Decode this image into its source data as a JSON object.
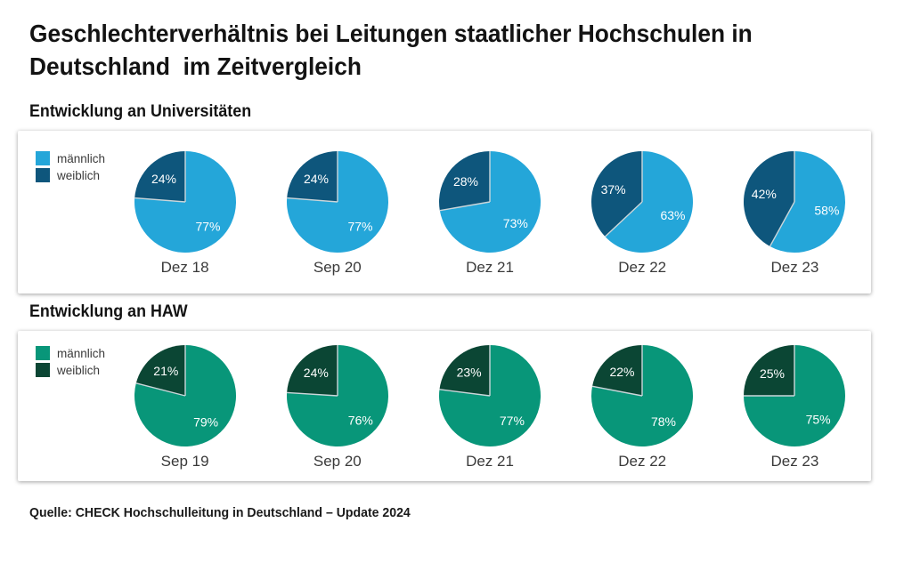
{
  "page": {
    "background": "#ffffff",
    "title_line1": "Geschlechterverhältnis bei Leitungen staatlicher Hochschulen in",
    "title_line2": "Deutschland  im Zeitvergleich",
    "source": "Quelle: CHECK Hochschulleitung in Deutschland – Update 2024"
  },
  "chart_data": [
    {
      "type": "pie",
      "title": "Entwicklung an Universitäten",
      "legend": [
        "männlich",
        "weiblich"
      ],
      "series_colors": [
        "#24A6D9",
        "#0E567C"
      ],
      "slice_label_color": "#ffffff",
      "slice_divider_color": "#ccd6da",
      "start_angle_deg": 0,
      "direction": "clockwise",
      "legend_position": "left",
      "categories": [
        "Dez 18",
        "Sep 20",
        "Dez 21",
        "Dez 22",
        "Dez 23"
      ],
      "series": [
        {
          "name": "männlich",
          "values": [
            77,
            77,
            73,
            63,
            58
          ]
        },
        {
          "name": "weiblich",
          "values": [
            24,
            24,
            28,
            37,
            42
          ]
        }
      ]
    },
    {
      "type": "pie",
      "title": "Entwicklung an HAW",
      "legend": [
        "männlich",
        "weiblich"
      ],
      "series_colors": [
        "#089679",
        "#0B4634"
      ],
      "slice_label_color": "#ffffff",
      "slice_divider_color": "#ccd6da",
      "start_angle_deg": 0,
      "direction": "clockwise",
      "legend_position": "left",
      "categories": [
        "Sep 19",
        "Sep 20",
        "Dez 21",
        "Dez 22",
        "Dez 23"
      ],
      "series": [
        {
          "name": "männlich",
          "values": [
            79,
            76,
            77,
            78,
            75
          ]
        },
        {
          "name": "weiblich",
          "values": [
            21,
            24,
            23,
            22,
            25
          ]
        }
      ]
    }
  ]
}
